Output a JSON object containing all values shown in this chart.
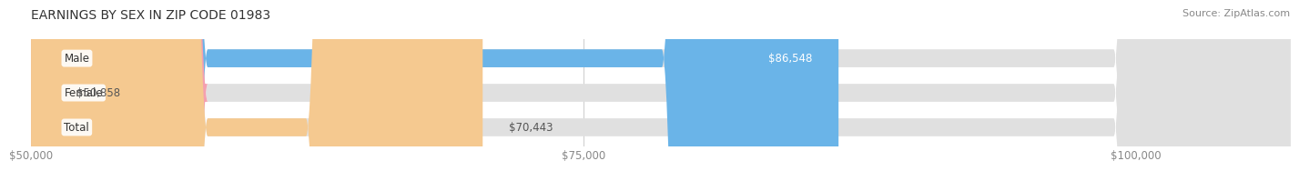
{
  "title": "EARNINGS BY SEX IN ZIP CODE 01983",
  "source": "Source: ZipAtlas.com",
  "categories": [
    "Male",
    "Female",
    "Total"
  ],
  "values": [
    86548,
    50858,
    70443
  ],
  "bar_colors": [
    "#6ab4e8",
    "#f4a0b0",
    "#f5c990"
  ],
  "track_color": "#e0e0e0",
  "label_colors_inside": [
    "#ffffff",
    "#ffffff",
    "#555555"
  ],
  "x_min": 50000,
  "x_max": 107000,
  "x_ticks": [
    50000,
    75000,
    100000
  ],
  "x_tick_labels": [
    "$50,000",
    "$75,000",
    "$100,000"
  ],
  "value_labels": [
    "$86,548",
    "$50,858",
    "$70,443"
  ],
  "title_fontsize": 10,
  "source_fontsize": 8,
  "bar_height": 0.52,
  "background_color": "#ffffff",
  "title_color": "#333333",
  "source_color": "#888888",
  "tick_color": "#888888",
  "grid_color": "#cccccc"
}
